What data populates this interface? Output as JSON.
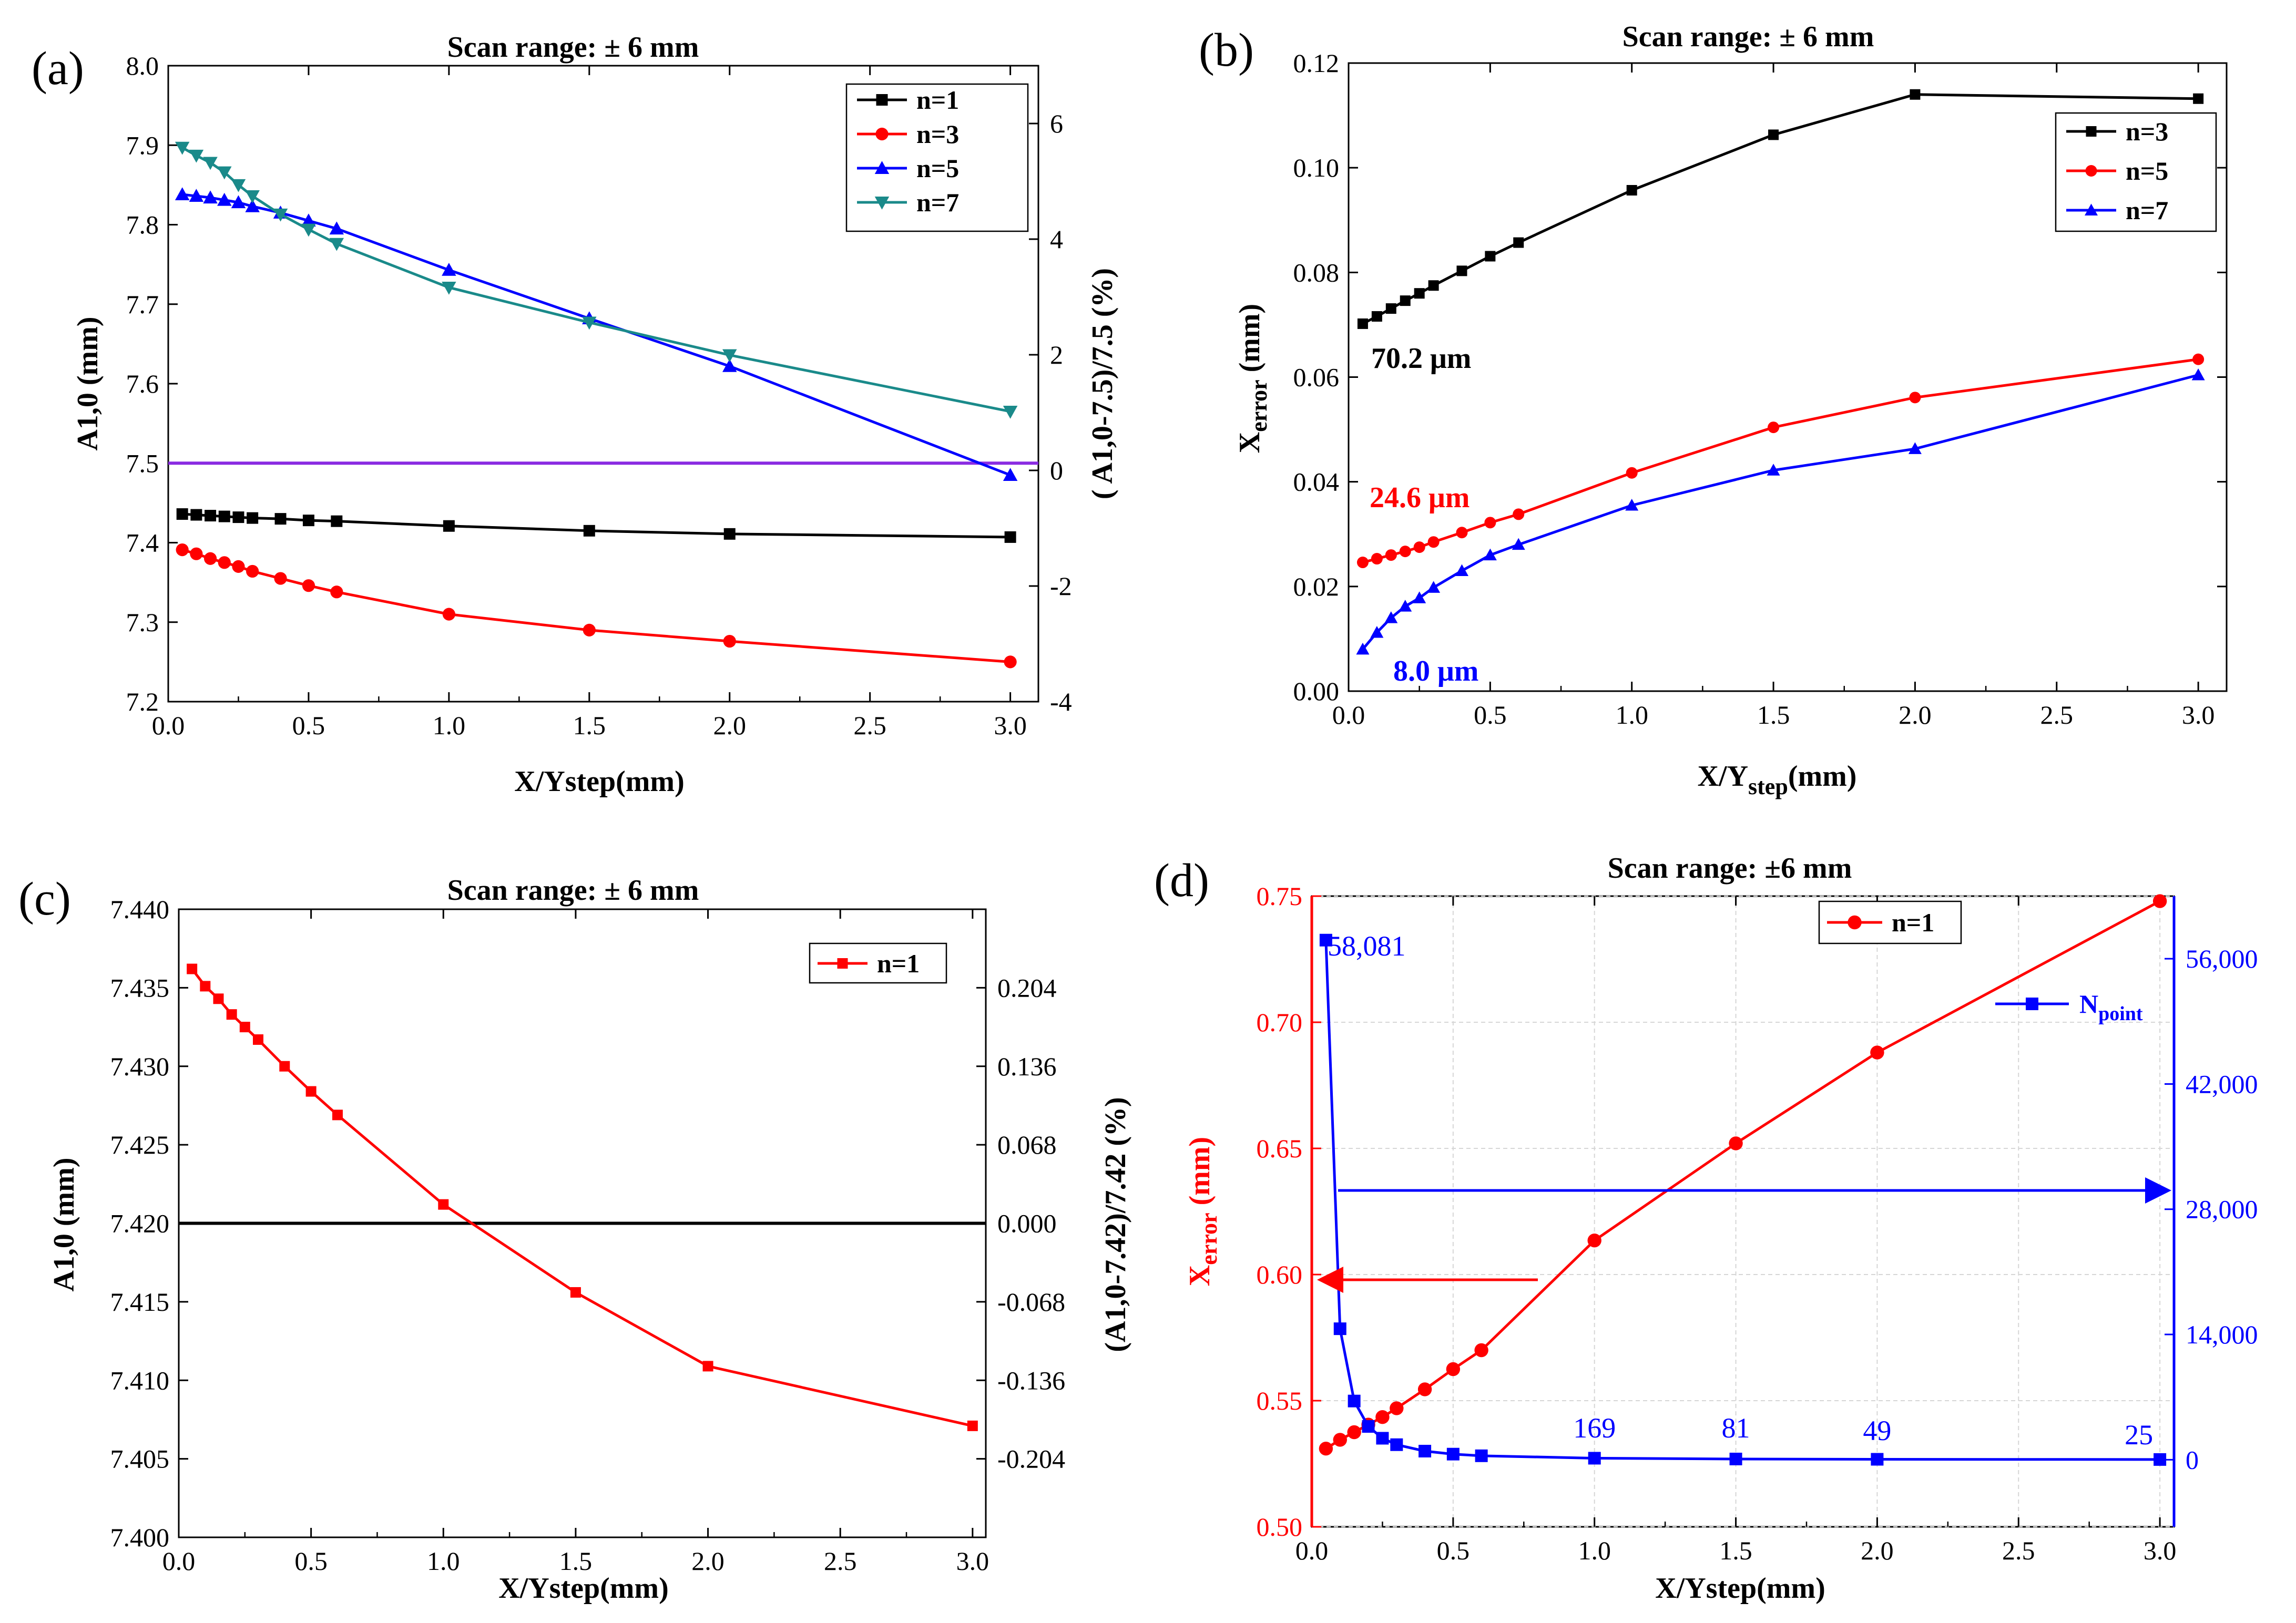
{
  "chart_data": [
    {
      "type": "line",
      "panel_label": "(a)",
      "title": "Scan range: ±  6 mm",
      "xlabel": "X/Ystep(mm)",
      "ylabel": "A1,0 (mm)",
      "y2label": "( A1,0-7.5)/7.5 (%)",
      "xlim": [
        0,
        3.1
      ],
      "ylim": [
        7.2,
        8.0
      ],
      "y2lim": [
        -4,
        7
      ],
      "xticks": [
        "0.0",
        "0.5",
        "1.0",
        "1.5",
        "2.0",
        "2.5",
        "3.0"
      ],
      "yticks": [
        "7.2",
        "7.3",
        "7.4",
        "7.5",
        "7.6",
        "7.7",
        "7.8",
        "7.9",
        "8.0"
      ],
      "y2ticks": [
        "-4",
        "-2",
        "0",
        "2",
        "4",
        "6"
      ],
      "legend": "top-right",
      "reference_line": {
        "y": 7.5,
        "color": "#8a2be2"
      },
      "series": [
        {
          "name": "n=1",
          "color": "#000000",
          "marker": "square",
          "x": [
            0.05,
            0.1,
            0.15,
            0.2,
            0.25,
            0.3,
            0.4,
            0.5,
            0.6,
            1.0,
            1.5,
            2.0,
            3.0
          ],
          "y": [
            7.436,
            7.435,
            7.434,
            7.433,
            7.432,
            7.431,
            7.43,
            7.428,
            7.427,
            7.421,
            7.415,
            7.411,
            7.407
          ]
        },
        {
          "name": "n=3",
          "color": "#ff0000",
          "marker": "circle",
          "x": [
            0.05,
            0.1,
            0.15,
            0.2,
            0.25,
            0.3,
            0.4,
            0.5,
            0.6,
            1.0,
            1.5,
            2.0,
            3.0
          ],
          "y": [
            7.391,
            7.386,
            7.38,
            7.375,
            7.37,
            7.364,
            7.355,
            7.346,
            7.338,
            7.31,
            7.29,
            7.276,
            7.25
          ]
        },
        {
          "name": "n=5",
          "color": "#0000ff",
          "marker": "triangle-up",
          "x": [
            0.05,
            0.1,
            0.15,
            0.2,
            0.25,
            0.3,
            0.4,
            0.5,
            0.6,
            1.0,
            1.5,
            2.0,
            3.0
          ],
          "y": [
            7.838,
            7.836,
            7.834,
            7.831,
            7.828,
            7.823,
            7.815,
            7.805,
            7.795,
            7.743,
            7.682,
            7.622,
            7.485
          ]
        },
        {
          "name": "n=7",
          "color": "#1a8a8a",
          "marker": "triangle-down",
          "x": [
            0.05,
            0.1,
            0.15,
            0.2,
            0.25,
            0.3,
            0.4,
            0.5,
            0.6,
            1.0,
            1.5,
            2.0,
            3.0
          ],
          "y": [
            7.897,
            7.887,
            7.878,
            7.866,
            7.85,
            7.836,
            7.813,
            7.794,
            7.776,
            7.721,
            7.677,
            7.636,
            7.565
          ]
        }
      ]
    },
    {
      "type": "line",
      "panel_label": "(b)",
      "title": "Scan range: ±  6 mm",
      "xlabel": "X/Ystep(mm)",
      "ylabel": "Xerror (mm)",
      "xlim": [
        0,
        3.1
      ],
      "ylim": [
        0,
        0.12
      ],
      "xticks": [
        "0.0",
        "0.5",
        "1.0",
        "1.5",
        "2.0",
        "2.5",
        "3.0"
      ],
      "yticks": [
        "0.00",
        "0.02",
        "0.04",
        "0.06",
        "0.08",
        "0.10",
        "0.12"
      ],
      "legend": "top-right",
      "annotations": [
        {
          "text": "70.2 μm",
          "color": "#000000"
        },
        {
          "text": "24.6 μm",
          "color": "#ff0000"
        },
        {
          "text": "8.0 μm",
          "color": "#0000ff"
        }
      ],
      "series": [
        {
          "name": "n=3",
          "color": "#000000",
          "marker": "square",
          "x": [
            0.05,
            0.1,
            0.15,
            0.2,
            0.25,
            0.3,
            0.4,
            0.5,
            0.6,
            1.0,
            1.5,
            2.0,
            3.0
          ],
          "y": [
            0.0702,
            0.0716,
            0.0731,
            0.0746,
            0.076,
            0.0775,
            0.0803,
            0.0831,
            0.0857,
            0.0957,
            0.1063,
            0.114,
            0.1132
          ]
        },
        {
          "name": "n=5",
          "color": "#ff0000",
          "marker": "circle",
          "x": [
            0.05,
            0.1,
            0.15,
            0.2,
            0.25,
            0.3,
            0.4,
            0.5,
            0.6,
            1.0,
            1.5,
            2.0,
            3.0
          ],
          "y": [
            0.0246,
            0.0253,
            0.026,
            0.0267,
            0.0275,
            0.0285,
            0.0303,
            0.0322,
            0.0338,
            0.0417,
            0.0504,
            0.0561,
            0.0634
          ]
        },
        {
          "name": "n=7",
          "color": "#0000ff",
          "marker": "triangle-up",
          "x": [
            0.05,
            0.1,
            0.15,
            0.2,
            0.25,
            0.3,
            0.4,
            0.5,
            0.6,
            1.0,
            1.5,
            2.0,
            3.0
          ],
          "y": [
            0.008,
            0.0112,
            0.014,
            0.0162,
            0.0178,
            0.0198,
            0.023,
            0.026,
            0.028,
            0.0355,
            0.0422,
            0.0463,
            0.0604
          ]
        }
      ]
    },
    {
      "type": "line",
      "panel_label": "(c)",
      "title": "Scan range: ±  6 mm",
      "xlabel": "X/Ystep(mm)",
      "ylabel": "A1,0 (mm)",
      "y2label": "(A1,0-7.42)/7.42 (%)",
      "xlim": [
        0,
        3.05
      ],
      "ylim": [
        7.4,
        7.44
      ],
      "xticks": [
        "0.0",
        "0.5",
        "1.0",
        "1.5",
        "2.0",
        "2.5",
        "3.0"
      ],
      "yticks": [
        "7.400",
        "7.405",
        "7.410",
        "7.415",
        "7.420",
        "7.425",
        "7.430",
        "7.435",
        "7.440"
      ],
      "y2ticks": [
        "0.204",
        "0.136",
        "0.068",
        "0.000",
        "-0.068",
        "-0.136",
        "-0.204"
      ],
      "legend": "top-right",
      "reference_line": {
        "y": 7.42,
        "color": "#000000"
      },
      "series": [
        {
          "name": "n=1",
          "color": "#ff0000",
          "marker": "square",
          "x": [
            0.05,
            0.1,
            0.15,
            0.2,
            0.25,
            0.3,
            0.4,
            0.5,
            0.6,
            1.0,
            1.5,
            2.0,
            3.0
          ],
          "y": [
            7.4362,
            7.4351,
            7.4343,
            7.4333,
            7.4325,
            7.4317,
            7.43,
            7.4284,
            7.4269,
            7.4212,
            7.4156,
            7.4109,
            7.4071
          ]
        }
      ]
    },
    {
      "type": "line",
      "panel_label": "(d)",
      "title": "Scan range: ±6 mm",
      "xlabel": "X/Ystep(mm)",
      "ylabel": "Xerror (mm)",
      "xlim": [
        0,
        3.05
      ],
      "ylim": [
        0.5,
        0.75
      ],
      "y2lim": [
        -7500,
        63000
      ],
      "xticks": [
        "0.0",
        "0.5",
        "1.0",
        "1.5",
        "2.0",
        "2.5",
        "3.0"
      ],
      "yticks": [
        "0.50",
        "0.55",
        "0.60",
        "0.65",
        "0.70",
        "0.75"
      ],
      "y2ticks": [
        "0",
        "14,000",
        "28,000",
        "42,000",
        "56,000"
      ],
      "legend": "top-right",
      "series": [
        {
          "name": "n=1",
          "axis": "left",
          "color": "#ff0000",
          "marker": "circle",
          "x": [
            0.05,
            0.1,
            0.15,
            0.2,
            0.25,
            0.3,
            0.4,
            0.5,
            0.6,
            1.0,
            1.5,
            2.0,
            3.0
          ],
          "y": [
            0.531,
            0.5345,
            0.5375,
            0.5405,
            0.5435,
            0.547,
            0.5545,
            0.5625,
            0.57,
            0.6135,
            0.652,
            0.688,
            0.748
          ]
        },
        {
          "name": "Npoint",
          "axis": "right",
          "color": "#0000ff",
          "marker": "square",
          "x": [
            0.05,
            0.1,
            0.15,
            0.2,
            0.25,
            0.3,
            0.4,
            0.5,
            0.6,
            1.0,
            1.5,
            2.0,
            3.0
          ],
          "y": [
            58081,
            14641,
            6561,
            3721,
            2401,
            1681,
            961,
            625,
            441,
            169,
            81,
            49,
            25
          ]
        }
      ],
      "point_labels": [
        "58,081",
        "169",
        "81",
        "49",
        "25"
      ]
    }
  ]
}
